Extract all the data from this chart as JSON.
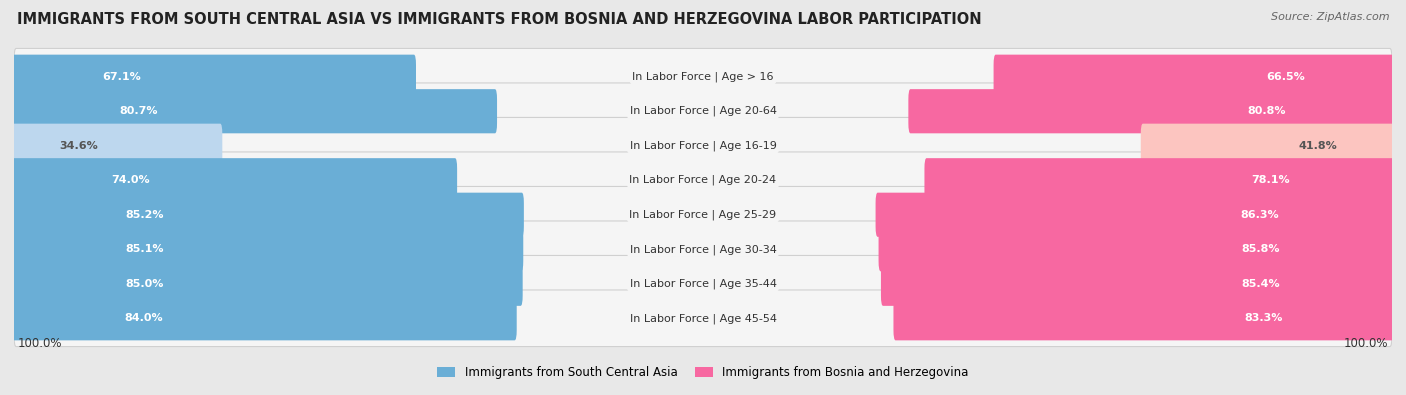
{
  "title": "IMMIGRANTS FROM SOUTH CENTRAL ASIA VS IMMIGRANTS FROM BOSNIA AND HERZEGOVINA LABOR PARTICIPATION",
  "source": "Source: ZipAtlas.com",
  "categories": [
    "In Labor Force | Age > 16",
    "In Labor Force | Age 20-64",
    "In Labor Force | Age 16-19",
    "In Labor Force | Age 20-24",
    "In Labor Force | Age 25-29",
    "In Labor Force | Age 30-34",
    "In Labor Force | Age 35-44",
    "In Labor Force | Age 45-54"
  ],
  "left_values": [
    67.1,
    80.7,
    34.6,
    74.0,
    85.2,
    85.1,
    85.0,
    84.0
  ],
  "right_values": [
    66.5,
    80.8,
    41.8,
    78.1,
    86.3,
    85.8,
    85.4,
    83.3
  ],
  "left_color_strong": "#6aaed6",
  "left_color_light": "#bdd7ee",
  "right_color_strong": "#f768a1",
  "right_color_light": "#fcc5c0",
  "left_label": "Immigrants from South Central Asia",
  "right_label": "Immigrants from Bosnia and Herzegovina",
  "bg_color": "#e8e8e8",
  "bar_bg_color": "#f5f5f5",
  "bar_bg_edge_color": "#d0d0d0",
  "max_value": 100.0,
  "threshold": 60.0,
  "title_fontsize": 10.5,
  "label_fontsize": 8.0,
  "value_fontsize": 8.0,
  "footer_fontsize": 8.5,
  "source_fontsize": 8.0
}
